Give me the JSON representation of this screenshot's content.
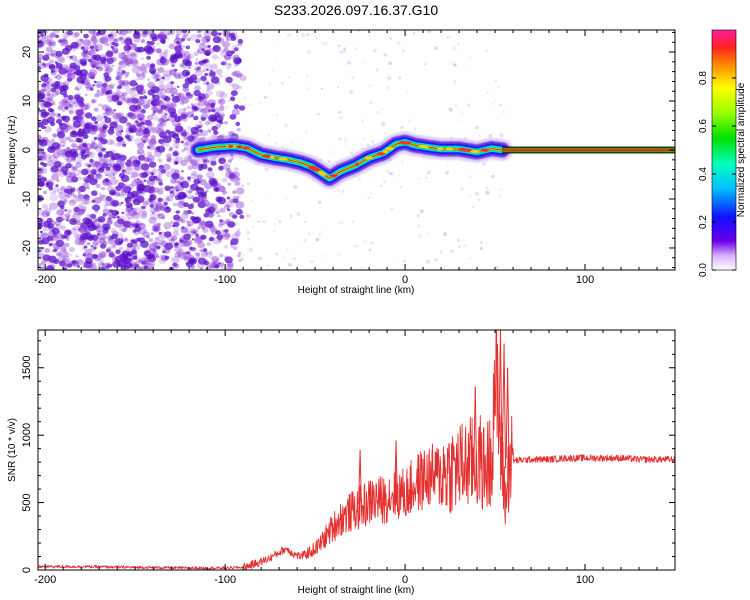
{
  "title": "S233.2026.097.16.37.G10",
  "colors": {
    "snr_line": "#e53030",
    "ridge": "#e02818",
    "cloud": "#8a3ad8",
    "cloud_dark": "#5a10c8",
    "band_fill": "#ff2020",
    "band_edge": "#00c800"
  },
  "chart_data": [
    {
      "id": "spectrogram",
      "type": "heatmap",
      "xlabel": "Height of straight line (km)",
      "ylabel": "Frequency (Hz)",
      "xlim": [
        -204,
        150
      ],
      "ylim": [
        -24.5,
        24.5
      ],
      "xticks": [
        -200,
        -100,
        0,
        100
      ],
      "xtick_labels": [
        "-200",
        "-100",
        "0",
        "100"
      ],
      "yticks": [
        20,
        10,
        0,
        -10,
        -20
      ],
      "ytick_labels": [
        "20",
        "10",
        "0",
        "-10",
        "-20"
      ],
      "noise_region_km": [
        -204,
        -90
      ],
      "ridge": {
        "name": "dominant frequency track",
        "x": [
          -115,
          -105,
          -95,
          -88,
          -80,
          -72,
          -65,
          -58,
          -52,
          -46,
          -42,
          -36,
          -28,
          -20,
          -12,
          -5,
          0,
          5,
          12,
          20,
          30,
          40,
          48,
          54
        ],
        "y": [
          0,
          0.6,
          0.8,
          0.4,
          -1.0,
          -1.6,
          -2.0,
          -2.6,
          -3.4,
          -4.8,
          -5.8,
          -4.4,
          -3.2,
          -1.6,
          -0.6,
          1.2,
          1.6,
          1.0,
          0.6,
          0.2,
          0.2,
          -0.4,
          0.3,
          0.0
        ]
      },
      "steady_band": {
        "x_start": 54,
        "x_end": 150,
        "y": 0
      },
      "colorbar": {
        "label": "Normalized spectral amplitude",
        "ticks": [
          0.0,
          0.2,
          0.4,
          0.6,
          0.8
        ],
        "tick_labels": [
          "0.0",
          "0.2",
          "0.4",
          "0.6",
          "0.8"
        ],
        "range": [
          0,
          1
        ]
      }
    },
    {
      "id": "snr",
      "type": "line",
      "xlabel": "Height of straight line (km)",
      "ylabel": "SNR (10 * v/v)",
      "xlim": [
        -204,
        150
      ],
      "ylim": [
        0,
        1780
      ],
      "xticks": [
        -200,
        -100,
        0,
        100
      ],
      "xtick_labels": [
        "-200",
        "-100",
        "0",
        "100"
      ],
      "yticks": [
        0,
        500,
        1000,
        1500
      ],
      "ytick_labels": [
        "0",
        "500",
        "1000",
        "1500"
      ],
      "series": [
        {
          "name": "SNR",
          "x": [
            -204,
            -180,
            -150,
            -120,
            -100,
            -90,
            -80,
            -75,
            -70,
            -66,
            -62,
            -58,
            -52,
            -48,
            -44,
            -40,
            -36,
            -30,
            -24,
            -18,
            -12,
            -6,
            0,
            6,
            12,
            18,
            24,
            30,
            36,
            42,
            46,
            48,
            50,
            52,
            54,
            56,
            58,
            60,
            70,
            80,
            90,
            100,
            110,
            120,
            130,
            140,
            150
          ],
          "y": [
            25,
            25,
            20,
            15,
            15,
            20,
            60,
            90,
            130,
            160,
            120,
            100,
            140,
            180,
            250,
            320,
            380,
            430,
            470,
            520,
            520,
            580,
            560,
            640,
            690,
            700,
            740,
            760,
            790,
            800,
            700,
            900,
            1500,
            1100,
            760,
            500,
            820,
            810,
            820,
            820,
            830,
            830,
            830,
            830,
            820,
            820,
            820
          ]
        }
      ],
      "peaks": [
        {
          "x": 53,
          "y": 1780
        },
        {
          "x": 55,
          "y": 1680
        },
        {
          "x": 39,
          "y": 1360
        },
        {
          "x": 46,
          "y": 1100
        },
        {
          "x": 57,
          "y": 1500
        },
        {
          "x": -25,
          "y": 890
        },
        {
          "x": -5,
          "y": 960
        }
      ]
    }
  ]
}
